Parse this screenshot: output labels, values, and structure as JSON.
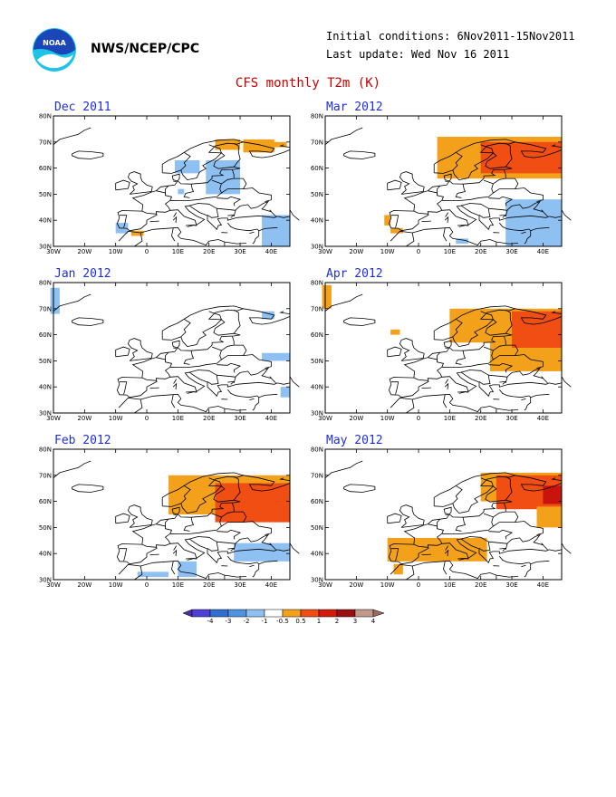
{
  "header": {
    "agency": "NWS/NCEP/CPC",
    "initial_conditions": "Initial conditions: 6Nov2011-15Nov2011",
    "last_update": "Last update: Wed Nov 16 2011",
    "title": "CFS monthly T2m (K)",
    "logo_text": "NOAA"
  },
  "axes": {
    "lat_labels": [
      "80N",
      "70N",
      "60N",
      "50N",
      "40N",
      "30N"
    ],
    "lon_labels": [
      "30W",
      "20W",
      "10W",
      "0",
      "10E",
      "20E",
      "30E",
      "40E"
    ]
  },
  "panels": [
    {
      "title": "Dec 2011",
      "anomalies": [
        {
          "lon": [
            22,
            30
          ],
          "lat": [
            67,
            71
          ],
          "cat": "+0.5"
        },
        {
          "lon": [
            40,
            45
          ],
          "lat": [
            68,
            70
          ],
          "cat": "+0.5"
        },
        {
          "lon": [
            31,
            41
          ],
          "lat": [
            66,
            71
          ],
          "cat": "+0.5"
        },
        {
          "lon": [
            -5,
            -1
          ],
          "lat": [
            34,
            36
          ],
          "cat": "+0.5"
        },
        {
          "lon": [
            9,
            17
          ],
          "lat": [
            58,
            63
          ],
          "cat": "-0.5"
        },
        {
          "lon": [
            19,
            30
          ],
          "lat": [
            50,
            63
          ],
          "cat": "-0.5"
        },
        {
          "lon": [
            10,
            12
          ],
          "lat": [
            50,
            52
          ],
          "cat": "-0.5"
        },
        {
          "lon": [
            37,
            46
          ],
          "lat": [
            30,
            42
          ],
          "cat": "-0.5"
        },
        {
          "lon": [
            -10,
            -6
          ],
          "lat": [
            35,
            39
          ],
          "cat": "-0.5"
        }
      ]
    },
    {
      "title": "Mar 2012",
      "anomalies": [
        {
          "lon": [
            6,
            46
          ],
          "lat": [
            56,
            72
          ],
          "cat": "+0.5"
        },
        {
          "lon": [
            20,
            46
          ],
          "lat": [
            58,
            70
          ],
          "cat": "+1"
        },
        {
          "lon": [
            -11,
            -9
          ],
          "lat": [
            38,
            42
          ],
          "cat": "+0.5"
        },
        {
          "lon": [
            -9,
            -5
          ],
          "lat": [
            35,
            37
          ],
          "cat": "+0.5"
        },
        {
          "lon": [
            28,
            46
          ],
          "lat": [
            30,
            48
          ],
          "cat": "-0.5"
        },
        {
          "lon": [
            12,
            16
          ],
          "lat": [
            31,
            33
          ],
          "cat": "-0.5"
        }
      ]
    },
    {
      "title": "Jan 2012",
      "anomalies": [
        {
          "lon": [
            -31,
            -28
          ],
          "lat": [
            68,
            78
          ],
          "cat": "-0.5"
        },
        {
          "lon": [
            37,
            41
          ],
          "lat": [
            66,
            69
          ],
          "cat": "-0.5"
        },
        {
          "lon": [
            37,
            46
          ],
          "lat": [
            50,
            53
          ],
          "cat": "-0.5"
        },
        {
          "lon": [
            43,
            46
          ],
          "lat": [
            36,
            40
          ],
          "cat": "-0.5"
        }
      ]
    },
    {
      "title": "Apr 2012",
      "anomalies": [
        {
          "lon": [
            -31,
            -28
          ],
          "lat": [
            70,
            79
          ],
          "cat": "+0.5"
        },
        {
          "lon": [
            -9,
            -6
          ],
          "lat": [
            60,
            62
          ],
          "cat": "+0.5"
        },
        {
          "lon": [
            10,
            46
          ],
          "lat": [
            57,
            70
          ],
          "cat": "+0.5"
        },
        {
          "lon": [
            23,
            46
          ],
          "lat": [
            46,
            62
          ],
          "cat": "+0.5"
        },
        {
          "lon": [
            30,
            46
          ],
          "lat": [
            55,
            69
          ],
          "cat": "+1"
        }
      ]
    },
    {
      "title": "Feb 2012",
      "anomalies": [
        {
          "lon": [
            7,
            46
          ],
          "lat": [
            55,
            70
          ],
          "cat": "+0.5"
        },
        {
          "lon": [
            22,
            46
          ],
          "lat": [
            52,
            67
          ],
          "cat": "+1"
        },
        {
          "lon": [
            28,
            46
          ],
          "lat": [
            37,
            44
          ],
          "cat": "-0.5"
        },
        {
          "lon": [
            -3,
            7
          ],
          "lat": [
            31,
            33
          ],
          "cat": "-0.5"
        },
        {
          "lon": [
            10,
            16
          ],
          "lat": [
            31,
            37
          ],
          "cat": "-0.5"
        }
      ]
    },
    {
      "title": "May 2012",
      "anomalies": [
        {
          "lon": [
            20,
            46
          ],
          "lat": [
            60,
            71
          ],
          "cat": "+0.5"
        },
        {
          "lon": [
            25,
            46
          ],
          "lat": [
            57,
            70
          ],
          "cat": "+1"
        },
        {
          "lon": [
            40,
            46
          ],
          "lat": [
            59,
            66
          ],
          "cat": "+2"
        },
        {
          "lon": [
            38,
            46
          ],
          "lat": [
            50,
            58
          ],
          "cat": "+0.5"
        },
        {
          "lon": [
            -10,
            22
          ],
          "lat": [
            37,
            46
          ],
          "cat": "+0.5"
        },
        {
          "lon": [
            -8,
            -5
          ],
          "lat": [
            32,
            36
          ],
          "cat": "+0.5"
        }
      ]
    }
  ],
  "colorbar": {
    "labels": [
      "-4",
      "-3",
      "-2",
      "-1",
      "-0.5",
      "0.5",
      "1",
      "2",
      "3",
      "4"
    ],
    "colors": [
      "#4a2ea8",
      "#4d40d8",
      "#2e6fd0",
      "#4e93e0",
      "#8ec0f2",
      "#ffffff",
      "#f3a11a",
      "#f04e12",
      "#d41a0a",
      "#9a1010",
      "#c19a8c",
      "#9c6b60"
    ]
  },
  "category_colors": {
    "-0.5": "#8ec0f2",
    "+0.5": "#f3a11a",
    "+1": "#f04e12",
    "+2": "#c8140c"
  }
}
